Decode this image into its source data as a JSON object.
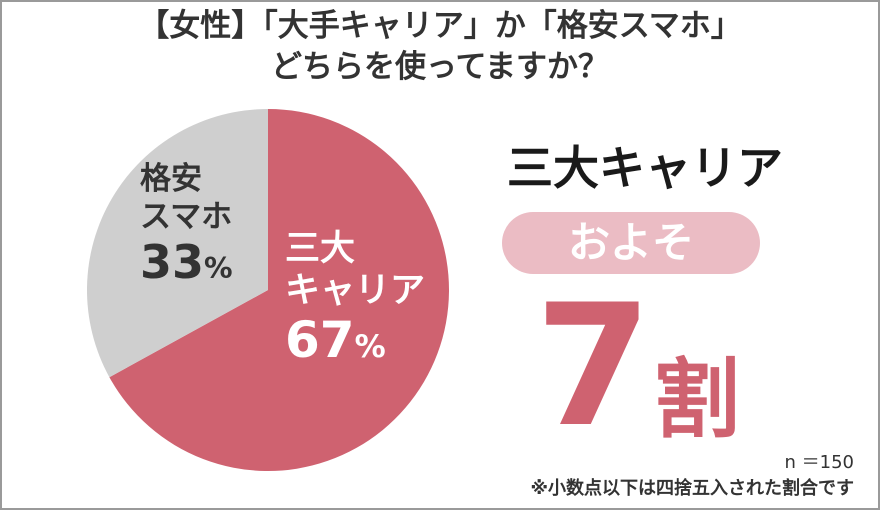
{
  "header": {
    "title_line1": "【女性】「大手キャリア」か「格安スマホ」",
    "title_line2": "どちらを使ってますか？"
  },
  "chart_data": {
    "type": "pie",
    "title": "【女性】「大手キャリア」か「格安スマホ」どちらを使ってますか？",
    "slices": [
      {
        "label_line1": "三大",
        "label_line2": "キャリア",
        "value": 67,
        "value_text": "67",
        "unit": "%",
        "color": "#cf6270"
      },
      {
        "label_line1": "格安",
        "label_line2": "スマホ",
        "value": 33,
        "value_text": "33",
        "unit": "%",
        "color": "#cfcfcf"
      }
    ]
  },
  "highlight": {
    "title": "三大キャリア",
    "pill": "およそ",
    "number": "7",
    "unit": "割",
    "color": "#cf6270",
    "pill_color": "#ebbcc4"
  },
  "notes": {
    "sample": "n ＝150",
    "rounding": "※小数点以下は四捨五入された割合です"
  }
}
